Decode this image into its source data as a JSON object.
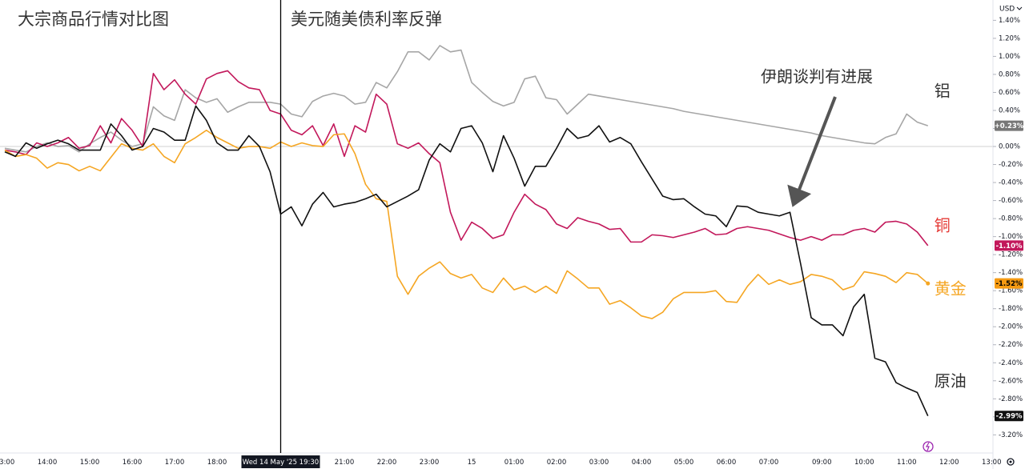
{
  "chart_data": {
    "type": "line",
    "title": "大宗商品行情对比图",
    "annotations": [
      "美元随美债利率反弹",
      "伊朗谈判有进展"
    ],
    "currency": "USD",
    "categories": [
      "13:00",
      null,
      null,
      null,
      "14:00",
      null,
      null,
      null,
      "15:00",
      null,
      null,
      null,
      "16:00",
      null,
      null,
      null,
      "17:00",
      null,
      null,
      null,
      "18:00",
      null,
      null,
      null,
      null,
      null,
      "Wed 14 May '25 19:30",
      null,
      null,
      null,
      null,
      null,
      "21:00",
      null,
      null,
      null,
      "22:00",
      null,
      null,
      null,
      "23:00",
      null,
      null,
      null,
      "15",
      null,
      null,
      null,
      "01:00",
      null,
      null,
      null,
      "02:00",
      null,
      null,
      null,
      "03:00",
      null,
      null,
      null,
      "04:00",
      null,
      null,
      null,
      "05:00",
      null,
      null,
      null,
      "06:00",
      null,
      null,
      null,
      "07:00",
      null,
      null,
      null,
      null,
      "09:00",
      null,
      null,
      null,
      "10:00",
      null,
      null,
      null,
      "11:00",
      null,
      null,
      null,
      "12:00",
      null,
      null,
      null,
      "13:00"
    ],
    "crosshair_index": 26,
    "series": [
      {
        "name": "铝",
        "color": "#a6a6a6",
        "label_color": "#333333",
        "badge_color": "#777777",
        "badge_text_color": "#ffffff",
        "last_value_label": "+0.23%",
        "values": [
          -0.02,
          -0.04,
          -0.06,
          0,
          0.04,
          0,
          0.01,
          -0.06,
          0.03,
          0.1,
          0.16,
          0.07,
          0,
          0.03,
          0.44,
          0.34,
          0.29,
          0.63,
          0.54,
          0.49,
          0.53,
          0.38,
          0.44,
          0.49,
          0.49,
          0.49,
          0.47,
          0.36,
          0.33,
          0.5,
          0.56,
          0.59,
          0.56,
          0.47,
          0.49,
          0.71,
          0.65,
          0.83,
          1.05,
          1.05,
          0.96,
          1.12,
          1.05,
          1.07,
          0.71,
          0.6,
          0.5,
          0.45,
          0.49,
          0.75,
          0.78,
          0.54,
          0.52,
          0.36,
          0.47,
          0.58,
          0.56,
          0.54,
          0.52,
          0.5,
          0.48,
          0.46,
          0.44,
          0.42,
          0.39,
          0.37,
          0.35,
          0.33,
          0.31,
          0.29,
          0.27,
          0.25,
          0.23,
          0.21,
          0.19,
          0.17,
          0.15,
          0.12,
          0.1,
          0.08,
          0.06,
          0.04,
          0.03,
          0.1,
          0.14,
          0.36,
          0.27,
          0.23,
          null,
          null,
          null,
          null,
          null,
          null
        ]
      },
      {
        "name": "铜",
        "color": "#c2185b",
        "label_color": "#e53935",
        "badge_color": "#c2185b",
        "badge_text_color": "#ffffff",
        "last_value_label": "-1.10%",
        "values": [
          -0.04,
          -0.06,
          -0.09,
          0.04,
          0,
          0.04,
          0.1,
          -0.02,
          0.01,
          0.23,
          0.04,
          0.31,
          0.18,
          0,
          0.81,
          0.63,
          0.74,
          0.58,
          0.47,
          0.75,
          0.81,
          0.84,
          0.72,
          0.65,
          0.63,
          0.4,
          0.36,
          0.18,
          0.13,
          0.23,
          0.01,
          0.25,
          -0.11,
          0.23,
          0.16,
          0.58,
          0.47,
          0.03,
          -0.02,
          0.04,
          -0.08,
          -0.18,
          -0.73,
          -1.04,
          -0.84,
          -0.91,
          -1.02,
          -0.98,
          -0.73,
          -0.53,
          -0.64,
          -0.7,
          -0.86,
          -0.91,
          -0.79,
          -0.83,
          -0.86,
          -0.92,
          -0.91,
          -1.06,
          -1.06,
          -0.98,
          -0.99,
          -1.01,
          -0.98,
          -0.95,
          -0.91,
          -0.98,
          -0.97,
          -0.91,
          -0.89,
          -0.91,
          -0.93,
          -0.97,
          -1.01,
          -1.04,
          -1,
          -1.04,
          -0.98,
          -0.98,
          -0.93,
          -0.91,
          -0.95,
          -0.84,
          -0.83,
          -0.86,
          -0.95,
          -1.1,
          null,
          null,
          null,
          null,
          null,
          null
        ]
      },
      {
        "name": "黄金",
        "color": "#f5a623",
        "label_color": "#f5a623",
        "badge_color": "#f59a12",
        "badge_text_color": "#000000",
        "last_value_label": "-1.52%",
        "end_marker": true,
        "values": [
          -0.04,
          -0.11,
          -0.09,
          -0.13,
          -0.24,
          -0.18,
          -0.2,
          -0.27,
          -0.22,
          -0.27,
          -0.12,
          0.03,
          -0.02,
          -0.04,
          0.03,
          -0.11,
          -0.18,
          0.03,
          0.1,
          0.18,
          0.1,
          0.04,
          -0.02,
          0,
          0,
          -0.02,
          0.05,
          0,
          0.04,
          0.01,
          0,
          0.13,
          0.14,
          -0.08,
          -0.42,
          -0.58,
          -0.61,
          -1.44,
          -1.64,
          -1.44,
          -1.35,
          -1.28,
          -1.41,
          -1.46,
          -1.42,
          -1.57,
          -1.62,
          -1.46,
          -1.59,
          -1.55,
          -1.62,
          -1.55,
          -1.63,
          -1.38,
          -1.47,
          -1.57,
          -1.57,
          -1.75,
          -1.71,
          -1.79,
          -1.88,
          -1.91,
          -1.84,
          -1.69,
          -1.62,
          -1.62,
          -1.62,
          -1.6,
          -1.72,
          -1.73,
          -1.55,
          -1.42,
          -1.53,
          -1.48,
          -1.53,
          -1.5,
          -1.42,
          -1.44,
          -1.48,
          -1.59,
          -1.55,
          -1.39,
          -1.41,
          -1.44,
          -1.51,
          -1.4,
          -1.42,
          -1.52,
          null,
          null,
          null,
          null,
          null,
          null
        ]
      },
      {
        "name": "原油",
        "color": "#111111",
        "label_color": "#333333",
        "badge_color": "#111111",
        "badge_text_color": "#ffffff",
        "last_value_label": "-2.99%",
        "values": [
          -0.06,
          -0.11,
          0.04,
          -0.02,
          0.03,
          0.07,
          0.03,
          -0.04,
          -0.04,
          -0.04,
          0.25,
          0.12,
          -0.04,
          0,
          0.2,
          0.16,
          0.07,
          0.07,
          0.45,
          0.29,
          0.04,
          -0.04,
          -0.04,
          0.12,
          0,
          -0.28,
          -0.75,
          -0.67,
          -0.88,
          -0.64,
          -0.51,
          -0.67,
          -0.64,
          -0.62,
          -0.58,
          -0.53,
          -0.67,
          -0.61,
          -0.55,
          -0.48,
          -0.15,
          0.03,
          -0.06,
          0.2,
          0.23,
          0.04,
          -0.28,
          0.12,
          -0.13,
          -0.44,
          -0.22,
          -0.22,
          -0.02,
          0.2,
          0.09,
          0.12,
          0.23,
          0.05,
          0.1,
          0.03,
          -0.17,
          -0.36,
          -0.55,
          -0.59,
          -0.58,
          -0.67,
          -0.75,
          -0.77,
          -0.89,
          -0.66,
          -0.67,
          -0.73,
          -0.75,
          -0.77,
          -0.73,
          -1.3,
          -1.9,
          -1.98,
          -1.98,
          -2.1,
          -1.78,
          -1.64,
          -2.35,
          -2.39,
          -2.62,
          -2.68,
          -2.73,
          -2.99,
          null,
          null,
          null,
          null,
          null,
          null
        ]
      }
    ],
    "ylim": [
      -3.3,
      1.55
    ],
    "yticks": [
      {
        "value": 1.4,
        "label": "1.40%"
      },
      {
        "value": 1.2,
        "label": "1.20%"
      },
      {
        "value": 1,
        "label": "1.00%"
      },
      {
        "value": 0.8,
        "label": "0.80%"
      },
      {
        "value": 0.6,
        "label": "0.60%"
      },
      {
        "value": 0.4,
        "label": "0.40%"
      },
      {
        "value": 0.2,
        "label": "0.20%"
      },
      {
        "value": 0,
        "label": "0.00%"
      },
      {
        "value": -0.2,
        "label": "-0.20%"
      },
      {
        "value": -0.4,
        "label": "-0.40%"
      },
      {
        "value": -0.6,
        "label": "-0.60%"
      },
      {
        "value": -0.8,
        "label": "-0.80%"
      },
      {
        "value": -1,
        "label": "-1.00%"
      },
      {
        "value": -1.2,
        "label": "-1.20%"
      },
      {
        "value": -1.4,
        "label": "-1.40%"
      },
      {
        "value": -1.6,
        "label": "-1.60%"
      },
      {
        "value": -1.8,
        "label": "-1.80%"
      },
      {
        "value": -2,
        "label": "-2.00%"
      },
      {
        "value": -2.2,
        "label": "-2.20%"
      },
      {
        "value": -2.4,
        "label": "-2.40%"
      },
      {
        "value": -2.6,
        "label": "-2.60%"
      },
      {
        "value": -2.8,
        "label": "-2.80%"
      },
      {
        "value": -3,
        "label": "-3.00%"
      },
      {
        "value": -3.2,
        "label": "-3.20%"
      }
    ],
    "zero_line": true,
    "grid": false
  }
}
